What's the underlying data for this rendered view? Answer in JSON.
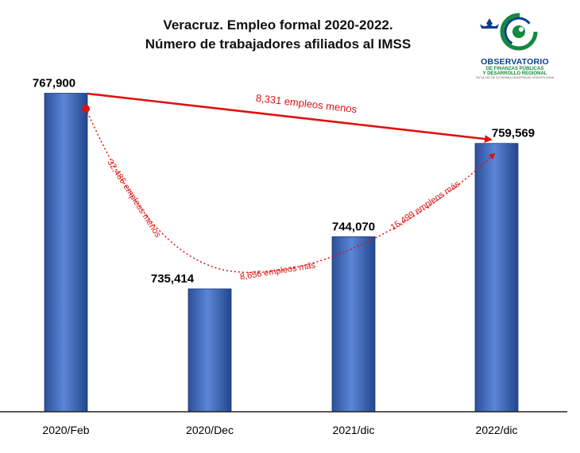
{
  "chart_data": {
    "type": "bar",
    "title_line1": "Veracruz. Empleo formal 2020-2022.",
    "title_line2": "Número de trabajadores afiliados al IMSS",
    "categories": [
      "2020/Feb",
      "2020/Dec",
      "2021/dic",
      "2022/dic"
    ],
    "values": [
      767900,
      735414,
      744070,
      759569
    ],
    "value_labels": [
      "767,900",
      "735,414",
      "744,070",
      "759,569"
    ],
    "ylim": [
      715000,
      770000
    ],
    "bar_color": "#4472c4",
    "annotations": {
      "top_arrow": "8,331  empleos menos",
      "left_curve": "32,486 empleos menos",
      "bottom_curve": "8,656  empleos más",
      "right_curve": "15,499 empleos más",
      "color": "#e01010"
    }
  },
  "logo": {
    "name": "OBSERVATORIO",
    "line2": "DE FINANZAS PÚBLICAS",
    "line3": "Y DESARROLLO REGIONAL",
    "line4": "FACULTAD DE ECONOMÍA UNIVERSIDAD VERACRUZANA",
    "primary_color": "#0a3f8c",
    "secondary_color": "#138a3e"
  }
}
